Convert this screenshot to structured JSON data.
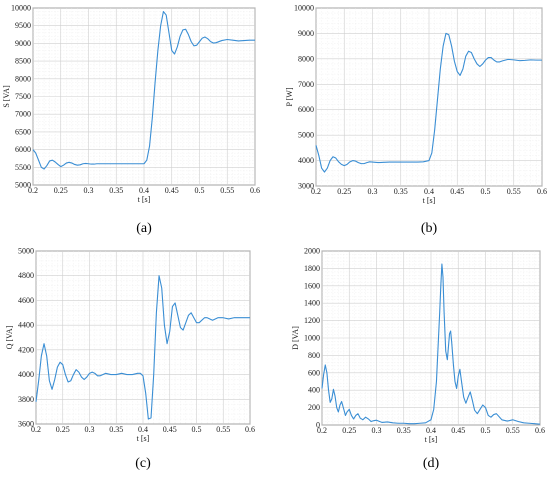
{
  "chart_data": [
    {
      "id": "a",
      "type": "line",
      "panel_label": "(a)",
      "xlabel": "t [s]",
      "ylabel": "S [VA]",
      "xlim": [
        0.2,
        0.6
      ],
      "ylim": [
        5000,
        10000
      ],
      "xticks": [
        0.2,
        0.25,
        0.3,
        0.35,
        0.4,
        0.45,
        0.5,
        0.55,
        0.6
      ],
      "xtick_labels": [
        "0.2",
        "0.25",
        "0.3",
        "0.35",
        "0.4",
        "0.45",
        "0.5",
        "0.55",
        "0.6"
      ],
      "yticks": [
        5000,
        5500,
        6000,
        6500,
        7000,
        7500,
        8000,
        8500,
        9000,
        9500,
        10000
      ],
      "ytick_labels": [
        "5000",
        "5500",
        "6000",
        "6500",
        "7000",
        "7500",
        "8000",
        "8500",
        "9000",
        "9500",
        "10000"
      ],
      "grid": true,
      "series": [
        {
          "color": "#3a8ed4",
          "x": [
            0.2,
            0.205,
            0.21,
            0.215,
            0.22,
            0.225,
            0.23,
            0.235,
            0.24,
            0.245,
            0.25,
            0.255,
            0.26,
            0.265,
            0.27,
            0.275,
            0.28,
            0.285,
            0.29,
            0.295,
            0.3,
            0.305,
            0.31,
            0.315,
            0.32,
            0.33,
            0.34,
            0.35,
            0.36,
            0.37,
            0.38,
            0.39,
            0.4,
            0.405,
            0.41,
            0.415,
            0.42,
            0.425,
            0.43,
            0.435,
            0.44,
            0.445,
            0.45,
            0.455,
            0.46,
            0.465,
            0.47,
            0.475,
            0.48,
            0.485,
            0.49,
            0.495,
            0.5,
            0.505,
            0.51,
            0.515,
            0.52,
            0.525,
            0.53,
            0.54,
            0.55,
            0.56,
            0.57,
            0.58,
            0.59,
            0.6
          ],
          "y": [
            6000,
            5900,
            5700,
            5500,
            5450,
            5550,
            5680,
            5700,
            5650,
            5580,
            5520,
            5560,
            5620,
            5640,
            5620,
            5580,
            5560,
            5570,
            5600,
            5610,
            5600,
            5590,
            5590,
            5600,
            5600,
            5600,
            5600,
            5600,
            5600,
            5600,
            5600,
            5600,
            5600,
            5700,
            6100,
            6900,
            7900,
            8800,
            9500,
            9900,
            9800,
            9300,
            8800,
            8700,
            8900,
            9200,
            9380,
            9400,
            9250,
            9050,
            8930,
            8950,
            9050,
            9150,
            9180,
            9130,
            9050,
            9010,
            9020,
            9080,
            9110,
            9090,
            9070,
            9080,
            9090,
            9090
          ]
        }
      ]
    },
    {
      "id": "b",
      "type": "line",
      "panel_label": "(b)",
      "xlabel": "t [s]",
      "ylabel": "P [W]",
      "xlim": [
        0.2,
        0.6
      ],
      "ylim": [
        3000,
        10000
      ],
      "xticks": [
        0.2,
        0.25,
        0.3,
        0.35,
        0.4,
        0.45,
        0.5,
        0.55,
        0.6
      ],
      "xtick_labels": [
        "0.2",
        "0.25",
        "0.3",
        "0.35",
        "0.4",
        "0.45",
        "0.5",
        "0.55",
        "0.6"
      ],
      "yticks": [
        3000,
        4000,
        5000,
        6000,
        7000,
        8000,
        9000,
        10000
      ],
      "ytick_labels": [
        "3000",
        "4000",
        "5000",
        "6000",
        "7000",
        "8000",
        "9000",
        "10000"
      ],
      "grid": true,
      "series": [
        {
          "color": "#3a8ed4",
          "x": [
            0.2,
            0.205,
            0.21,
            0.215,
            0.22,
            0.225,
            0.23,
            0.235,
            0.24,
            0.245,
            0.25,
            0.255,
            0.26,
            0.265,
            0.27,
            0.275,
            0.28,
            0.285,
            0.29,
            0.295,
            0.3,
            0.31,
            0.32,
            0.33,
            0.34,
            0.35,
            0.36,
            0.37,
            0.38,
            0.39,
            0.4,
            0.405,
            0.41,
            0.415,
            0.42,
            0.425,
            0.43,
            0.435,
            0.44,
            0.445,
            0.45,
            0.455,
            0.46,
            0.465,
            0.47,
            0.475,
            0.48,
            0.485,
            0.49,
            0.495,
            0.5,
            0.505,
            0.51,
            0.515,
            0.52,
            0.525,
            0.53,
            0.54,
            0.55,
            0.56,
            0.57,
            0.58,
            0.59,
            0.6
          ],
          "y": [
            4600,
            4200,
            3700,
            3550,
            3700,
            4000,
            4150,
            4100,
            3950,
            3850,
            3800,
            3850,
            3950,
            4000,
            3980,
            3920,
            3880,
            3880,
            3920,
            3950,
            3940,
            3920,
            3930,
            3940,
            3940,
            3940,
            3940,
            3940,
            3940,
            3950,
            4000,
            4300,
            5200,
            6400,
            7600,
            8500,
            9000,
            8950,
            8500,
            7900,
            7500,
            7350,
            7600,
            8100,
            8300,
            8250,
            8000,
            7800,
            7700,
            7800,
            7950,
            8050,
            8050,
            7950,
            7880,
            7880,
            7920,
            7980,
            7960,
            7930,
            7940,
            7960,
            7950,
            7950
          ]
        }
      ]
    },
    {
      "id": "c",
      "type": "line",
      "panel_label": "(c)",
      "xlabel": "t [s]",
      "ylabel": "Q [VA]",
      "xlim": [
        0.2,
        0.6
      ],
      "ylim": [
        3600,
        5000
      ],
      "xticks": [
        0.2,
        0.25,
        0.3,
        0.35,
        0.4,
        0.45,
        0.5,
        0.55,
        0.6
      ],
      "xtick_labels": [
        "0.2",
        "0.25",
        "0.3",
        "0.35",
        "0.4",
        "0.45",
        "0.5",
        "0.55",
        "0.6"
      ],
      "yticks": [
        3600,
        3800,
        4000,
        4200,
        4400,
        4600,
        4800,
        5000
      ],
      "ytick_labels": [
        "3600",
        "3800",
        "4000",
        "4200",
        "4400",
        "4600",
        "4800",
        "5000"
      ],
      "grid": true,
      "series": [
        {
          "color": "#3a8ed4",
          "x": [
            0.2,
            0.205,
            0.21,
            0.215,
            0.22,
            0.225,
            0.23,
            0.235,
            0.24,
            0.245,
            0.25,
            0.255,
            0.26,
            0.265,
            0.27,
            0.275,
            0.28,
            0.285,
            0.29,
            0.295,
            0.3,
            0.305,
            0.31,
            0.315,
            0.32,
            0.33,
            0.34,
            0.35,
            0.36,
            0.37,
            0.38,
            0.39,
            0.395,
            0.4,
            0.405,
            0.41,
            0.415,
            0.42,
            0.425,
            0.43,
            0.435,
            0.44,
            0.445,
            0.45,
            0.455,
            0.46,
            0.465,
            0.47,
            0.475,
            0.48,
            0.485,
            0.49,
            0.495,
            0.5,
            0.505,
            0.51,
            0.515,
            0.52,
            0.525,
            0.53,
            0.535,
            0.54,
            0.55,
            0.56,
            0.57,
            0.58,
            0.59,
            0.6
          ],
          "y": [
            3780,
            3950,
            4150,
            4250,
            4150,
            3950,
            3880,
            3960,
            4060,
            4100,
            4080,
            4000,
            3940,
            3950,
            4000,
            4040,
            4020,
            3980,
            3960,
            3980,
            4010,
            4020,
            4010,
            3990,
            3990,
            4010,
            4000,
            4000,
            4010,
            4000,
            4000,
            4010,
            4010,
            3990,
            3850,
            3640,
            3650,
            4000,
            4500,
            4800,
            4700,
            4400,
            4250,
            4350,
            4550,
            4580,
            4480,
            4380,
            4360,
            4420,
            4480,
            4500,
            4460,
            4420,
            4420,
            4440,
            4460,
            4460,
            4450,
            4440,
            4450,
            4460,
            4460,
            4450,
            4460,
            4460,
            4460,
            4460
          ]
        }
      ]
    },
    {
      "id": "d",
      "type": "line",
      "panel_label": "(d)",
      "xlabel": "t [s]",
      "ylabel": "D [VA]",
      "xlim": [
        0.2,
        0.6
      ],
      "ylim": [
        0,
        2000
      ],
      "xticks": [
        0.2,
        0.25,
        0.3,
        0.35,
        0.4,
        0.45,
        0.5,
        0.55,
        0.6
      ],
      "xtick_labels": [
        "0.2",
        "0.25",
        "0.3",
        "0.35",
        "0.4",
        "0.45",
        "0.5",
        "0.55",
        "0.6"
      ],
      "yticks": [
        0,
        200,
        400,
        600,
        800,
        1000,
        1200,
        1400,
        1600,
        1800,
        2000
      ],
      "ytick_labels": [
        "0",
        "200",
        "400",
        "600",
        "800",
        "1000",
        "1200",
        "1400",
        "1600",
        "1800",
        "2000"
      ],
      "grid": true,
      "series": [
        {
          "color": "#3a8ed4",
          "x": [
            0.2,
            0.203,
            0.206,
            0.209,
            0.212,
            0.215,
            0.218,
            0.221,
            0.224,
            0.227,
            0.23,
            0.233,
            0.236,
            0.24,
            0.243,
            0.246,
            0.25,
            0.254,
            0.258,
            0.262,
            0.266,
            0.27,
            0.275,
            0.28,
            0.285,
            0.29,
            0.295,
            0.3,
            0.31,
            0.32,
            0.33,
            0.34,
            0.35,
            0.36,
            0.37,
            0.38,
            0.39,
            0.4,
            0.405,
            0.41,
            0.413,
            0.416,
            0.418,
            0.42,
            0.422,
            0.424,
            0.427,
            0.43,
            0.432,
            0.434,
            0.436,
            0.438,
            0.441,
            0.444,
            0.447,
            0.45,
            0.453,
            0.456,
            0.46,
            0.464,
            0.468,
            0.472,
            0.476,
            0.48,
            0.485,
            0.49,
            0.495,
            0.5,
            0.505,
            0.51,
            0.515,
            0.52,
            0.53,
            0.54,
            0.55,
            0.56,
            0.57,
            0.58,
            0.59,
            0.6
          ],
          "y": [
            420,
            580,
            690,
            600,
            400,
            260,
            300,
            410,
            330,
            200,
            150,
            230,
            270,
            180,
            110,
            150,
            180,
            110,
            70,
            110,
            130,
            80,
            60,
            90,
            70,
            40,
            50,
            55,
            30,
            35,
            25,
            20,
            20,
            15,
            15,
            20,
            25,
            60,
            180,
            500,
            900,
            1300,
            1600,
            1850,
            1700,
            1300,
            850,
            750,
            900,
            1050,
            1080,
            950,
            700,
            500,
            420,
            560,
            640,
            500,
            320,
            250,
            320,
            380,
            280,
            170,
            130,
            180,
            230,
            200,
            110,
            90,
            120,
            130,
            60,
            45,
            60,
            40,
            25,
            20,
            15,
            10
          ]
        }
      ]
    }
  ]
}
